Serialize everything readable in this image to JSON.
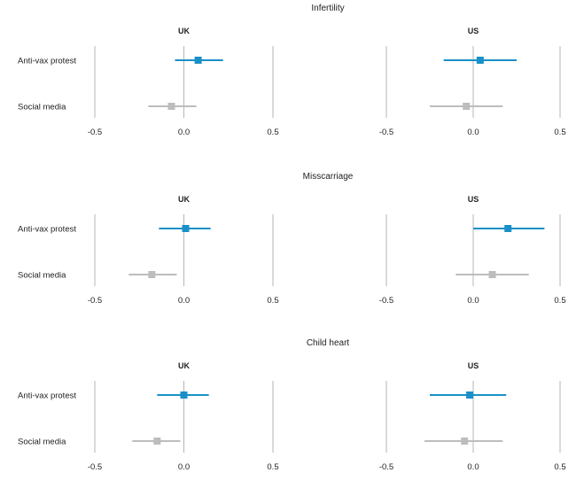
{
  "chart_data": [
    {
      "type": "forest",
      "title": "Infertility",
      "row_labels": [
        "Anti-vax protest",
        "Social media"
      ],
      "facets": [
        {
          "label": "UK",
          "xlim": [
            -0.5,
            0.5
          ],
          "ticks": [
            "-0.5",
            "0.0",
            "0.5"
          ],
          "points": [
            {
              "row": "Anti-vax protest",
              "estimate": 0.08,
              "low": -0.05,
              "high": 0.22
            },
            {
              "row": "Social media",
              "estimate": -0.07,
              "low": -0.2,
              "high": 0.07
            }
          ]
        },
        {
          "label": "US",
          "xlim": [
            -0.5,
            0.5
          ],
          "ticks": [
            "-0.5",
            "0.0",
            "0.5"
          ],
          "points": [
            {
              "row": "Anti-vax protest",
              "estimate": 0.04,
              "low": -0.17,
              "high": 0.25
            },
            {
              "row": "Social media",
              "estimate": -0.04,
              "low": -0.25,
              "high": 0.17
            }
          ]
        }
      ]
    },
    {
      "type": "forest",
      "title": "Misscarriage",
      "row_labels": [
        "Anti-vax protest",
        "Social media"
      ],
      "facets": [
        {
          "label": "UK",
          "xlim": [
            -0.5,
            0.5
          ],
          "ticks": [
            "-0.5",
            "0.0",
            "0.5"
          ],
          "points": [
            {
              "row": "Anti-vax protest",
              "estimate": 0.01,
              "low": -0.14,
              "high": 0.15
            },
            {
              "row": "Social media",
              "estimate": -0.18,
              "low": -0.31,
              "high": -0.04
            }
          ]
        },
        {
          "label": "US",
          "xlim": [
            -0.5,
            0.5
          ],
          "ticks": [
            "-0.5",
            "0.0",
            "0.5"
          ],
          "points": [
            {
              "row": "Anti-vax protest",
              "estimate": 0.2,
              "low": 0.0,
              "high": 0.41
            },
            {
              "row": "Social media",
              "estimate": 0.11,
              "low": -0.1,
              "high": 0.32
            }
          ]
        }
      ]
    },
    {
      "type": "forest",
      "title": "Child heart",
      "row_labels": [
        "Anti-vax protest",
        "Social media"
      ],
      "facets": [
        {
          "label": "UK",
          "xlim": [
            -0.5,
            0.5
          ],
          "ticks": [
            "-0.5",
            "0.0",
            "0.5"
          ],
          "points": [
            {
              "row": "Anti-vax protest",
              "estimate": 0.0,
              "low": -0.15,
              "high": 0.14
            },
            {
              "row": "Social media",
              "estimate": -0.15,
              "low": -0.29,
              "high": -0.02
            }
          ]
        },
        {
          "label": "US",
          "xlim": [
            -0.5,
            0.5
          ],
          "ticks": [
            "-0.5",
            "0.0",
            "0.5"
          ],
          "points": [
            {
              "row": "Anti-vax protest",
              "estimate": -0.02,
              "low": -0.25,
              "high": 0.19
            },
            {
              "row": "Social media",
              "estimate": -0.05,
              "low": -0.28,
              "high": 0.17
            }
          ]
        }
      ]
    }
  ],
  "colors": {
    "Anti-vax protest": "#1a90c8",
    "Social media": "#bdbdbd",
    "gridline": "#b5b5b5",
    "text": "#222222"
  }
}
